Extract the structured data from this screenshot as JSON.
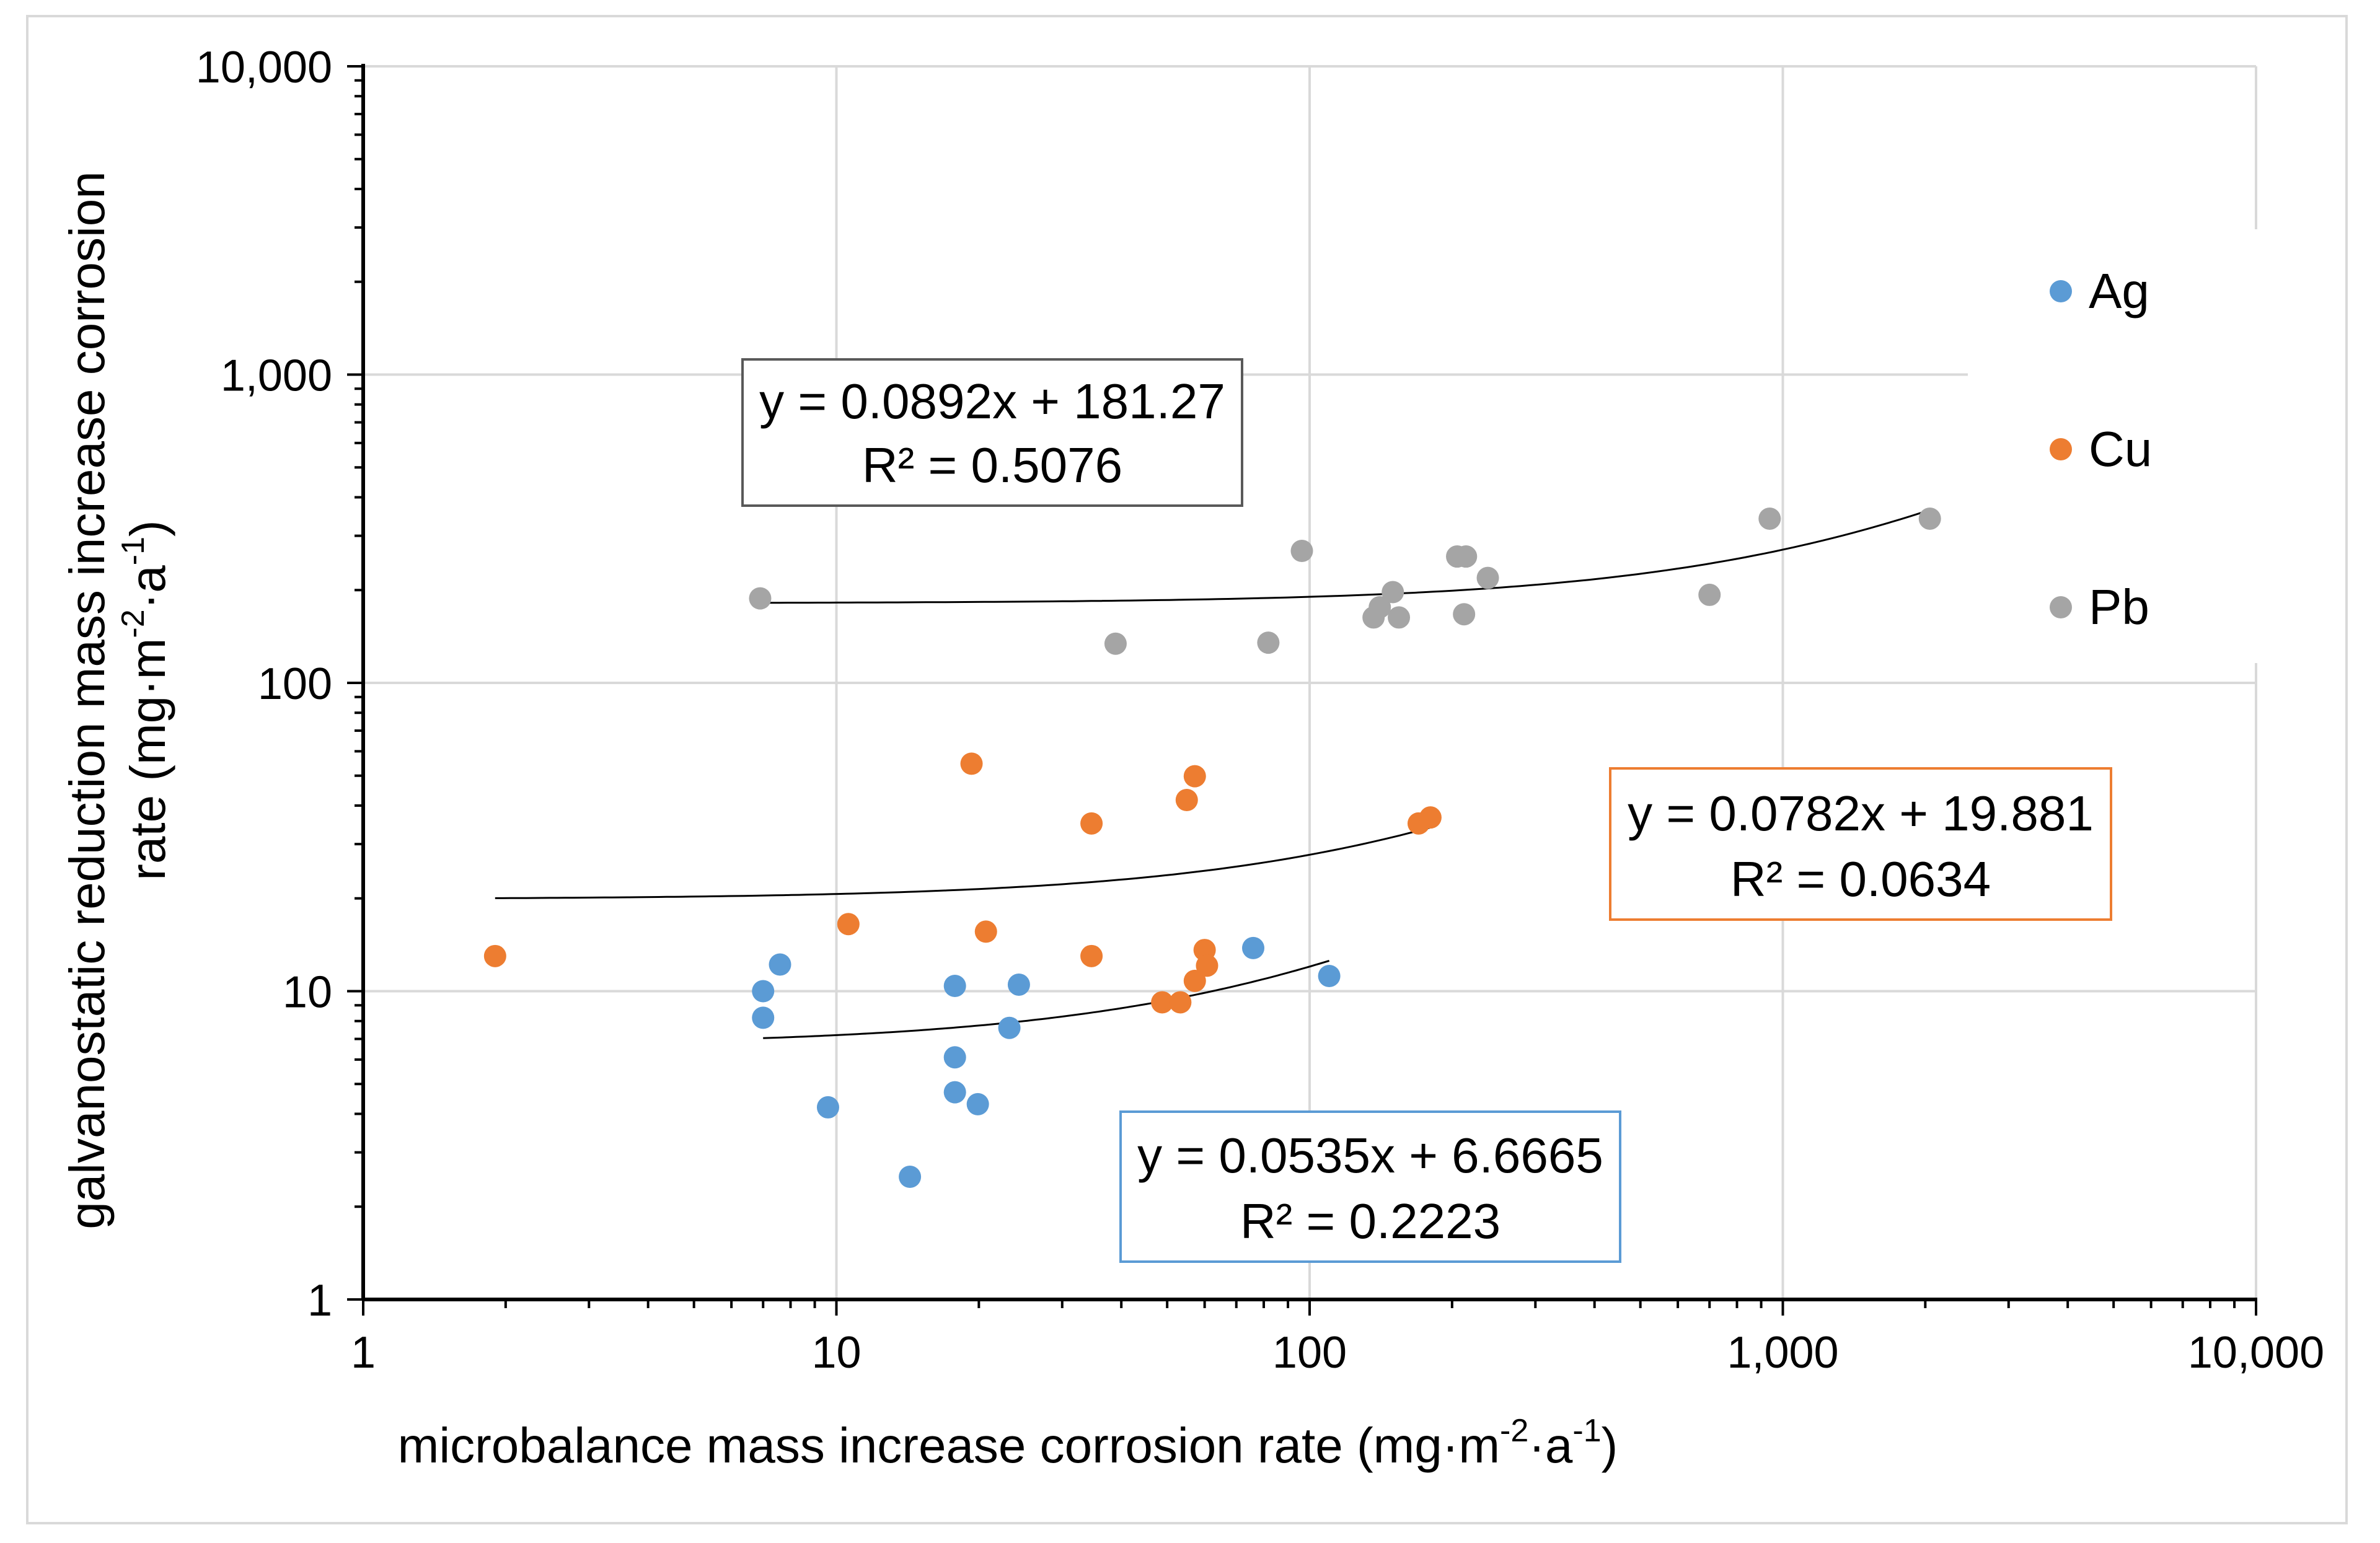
{
  "chart_data": {
    "type": "scatter",
    "title": "",
    "xlabel": {
      "main": "microbalance mass increase corrosion rate (mg·m",
      "sup1": "-2",
      "mid": "·a",
      "sup2": "-1",
      "end": ")"
    },
    "ylabel": {
      "line1": "galvanostatic reduction mass increase corrosion",
      "line2_main": "rate (mg·m",
      "line2_sup1": "-2",
      "line2_mid": "·a",
      "line2_sup2": "-1",
      "line2_end": ")"
    },
    "x_scale": "log",
    "y_scale": "log",
    "xlim": [
      1,
      10000
    ],
    "ylim": [
      1,
      10000
    ],
    "x_ticks": [
      1,
      10,
      100,
      1000,
      10000
    ],
    "y_ticks": [
      1,
      10,
      100,
      1000,
      10000
    ],
    "x_tick_labels": [
      "1",
      "10",
      "100",
      "1,000",
      "10,000"
    ],
    "y_tick_labels": [
      "1",
      "10",
      "100",
      "1,000",
      "10,000"
    ],
    "grid": true,
    "legend_position": "right",
    "series": [
      {
        "name": "Ag",
        "color": "#5b9bd5",
        "points": [
          [
            7.0,
            10.0
          ],
          [
            7.0,
            8.2
          ],
          [
            7.6,
            12.2
          ],
          [
            9.6,
            4.2
          ],
          [
            14.3,
            2.5
          ],
          [
            17.8,
            10.4
          ],
          [
            17.8,
            6.1
          ],
          [
            17.8,
            4.7
          ],
          [
            19.9,
            4.3
          ],
          [
            23.2,
            7.6
          ],
          [
            24.3,
            10.5
          ],
          [
            76,
            13.8
          ],
          [
            110,
            11.2
          ]
        ],
        "trend": {
          "slope": 0.0535,
          "intercept": 6.6665,
          "x_range": [
            7,
            110
          ],
          "equation": "y = 0.0535x + 6.6665",
          "r2": "R² = 0.2223",
          "box_border": "#5b9bd5"
        }
      },
      {
        "name": "Cu",
        "color": "#ed7d31",
        "points": [
          [
            1.9,
            13.0
          ],
          [
            10.6,
            16.5
          ],
          [
            19.3,
            54.7
          ],
          [
            20.7,
            15.6
          ],
          [
            34.6,
            35.0
          ],
          [
            34.6,
            13.0
          ],
          [
            48.8,
            9.2
          ],
          [
            53.3,
            9.2
          ],
          [
            55.0,
            41.7
          ],
          [
            57.2,
            10.8
          ],
          [
            57.2,
            49.8
          ],
          [
            60.0,
            13.6
          ],
          [
            60.7,
            12.1
          ],
          [
            170,
            35.0
          ],
          [
            180,
            36.6
          ]
        ],
        "trend": {
          "slope": 0.0782,
          "intercept": 19.881,
          "x_range": [
            1.9,
            180
          ],
          "equation": "y = 0.0782x + 19.881",
          "r2": "R² = 0.0634",
          "box_border": "#ed7d31"
        }
      },
      {
        "name": "Pb",
        "color": "#a5a5a5",
        "points": [
          [
            6.9,
            188
          ],
          [
            38.9,
            134
          ],
          [
            81.8,
            135
          ],
          [
            96.3,
            268
          ],
          [
            136.5,
            163
          ],
          [
            140.7,
            176
          ],
          [
            149.9,
            197
          ],
          [
            154.4,
            163
          ],
          [
            205,
            257
          ],
          [
            212,
            167
          ],
          [
            214,
            257
          ],
          [
            238,
            219
          ],
          [
            700,
            193
          ],
          [
            938,
            341
          ],
          [
            2045,
            341
          ]
        ],
        "trend": {
          "slope": 0.0892,
          "intercept": 181.27,
          "x_range": [
            6.9,
            2045
          ],
          "equation": "y = 0.0892x + 181.27",
          "r2": "R² = 0.5076",
          "box_border": "#595959"
        }
      }
    ]
  }
}
